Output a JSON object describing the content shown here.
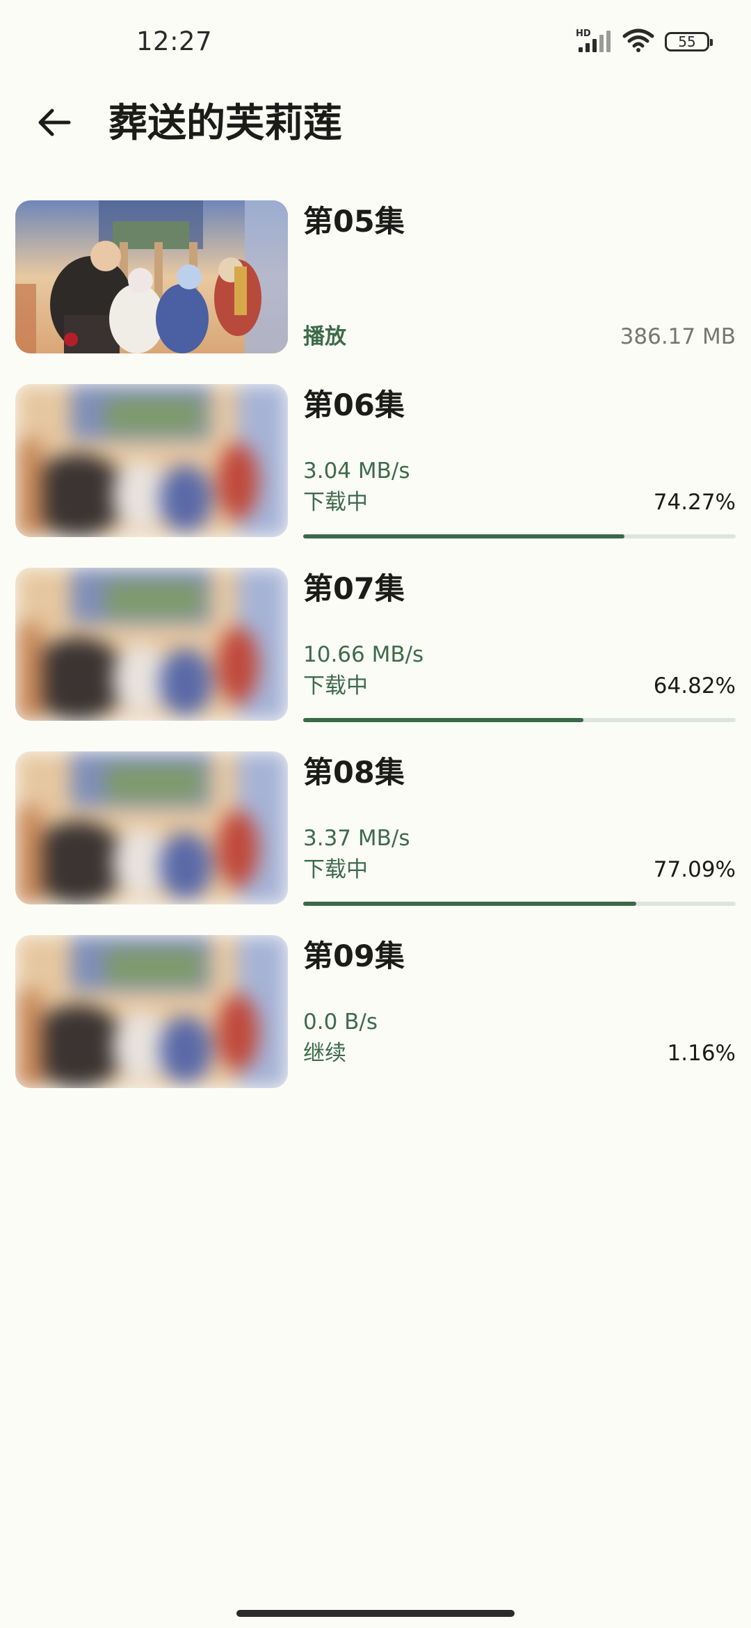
{
  "status_bar": {
    "time": "12:27",
    "network_label": "HD",
    "battery_level": "55",
    "icons": [
      "signal-icon",
      "wifi-icon",
      "battery-icon"
    ]
  },
  "app_bar": {
    "back_icon": "arrow-back-icon",
    "title": "葬送的芙莉莲"
  },
  "colors": {
    "accent": "#3d6b4a",
    "progress_fill": "#3a6a48",
    "progress_track": "#dfe4dd",
    "background": "#fcfcf7"
  },
  "episodes": [
    {
      "title": "第05集",
      "state": "downloaded",
      "action_label": "播放",
      "file_size": "386.17 MB"
    },
    {
      "title": "第06集",
      "state": "downloading",
      "speed": "3.04 MB/s",
      "status": "下载中",
      "percent": "74.27%",
      "progress": 0.7427
    },
    {
      "title": "第07集",
      "state": "downloading",
      "speed": "10.66 MB/s",
      "status": "下载中",
      "percent": "64.82%",
      "progress": 0.6482
    },
    {
      "title": "第08集",
      "state": "downloading",
      "speed": "3.37 MB/s",
      "status": "下载中",
      "percent": "77.09%",
      "progress": 0.7709
    },
    {
      "title": "第09集",
      "state": "paused",
      "speed": "0.0 B/s",
      "status": "继续",
      "percent": "1.16%"
    }
  ]
}
